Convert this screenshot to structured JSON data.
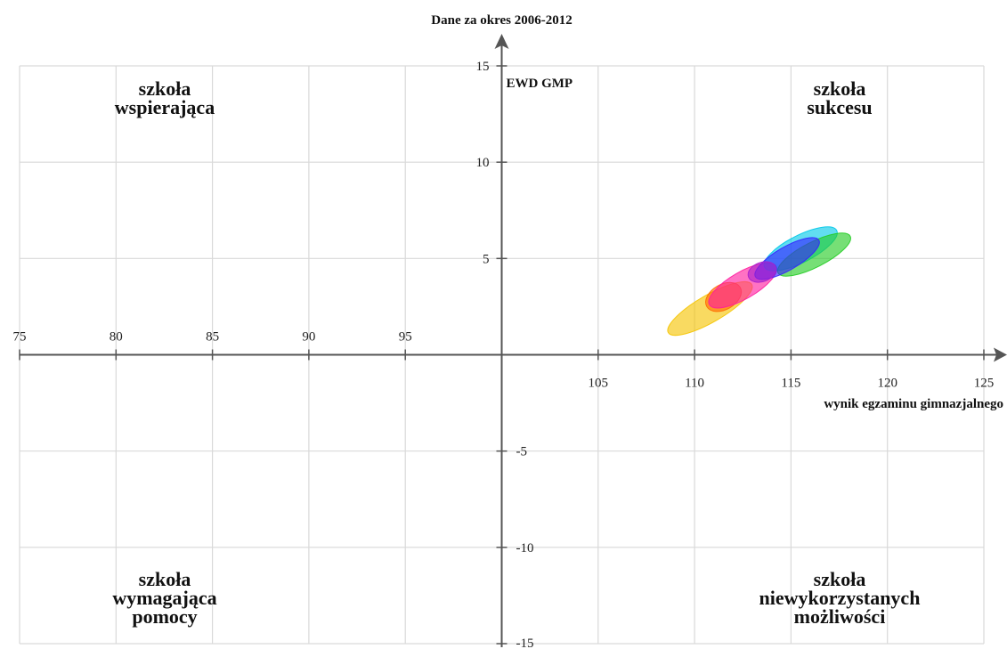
{
  "chart_data": {
    "type": "scatter",
    "title": "Dane za okres 2006-2012",
    "xlabel": "wynik egzaminu gimnazjalnego",
    "ylabel": "EWD GMP",
    "xlim": [
      75,
      125
    ],
    "ylim": [
      -15,
      15
    ],
    "x_ticks": [
      75,
      80,
      85,
      90,
      95,
      105,
      110,
      115,
      120,
      125
    ],
    "y_ticks": [
      15,
      10,
      5,
      -5,
      -10,
      -15
    ],
    "grid": true,
    "quadrant_labels": {
      "top_left": [
        "szkoła",
        "wspierająca"
      ],
      "top_right": [
        "szkoła",
        "sukcesu"
      ],
      "bottom_left": [
        "szkoła",
        "wymagająca",
        "pomocy"
      ],
      "bottom_right": [
        "szkoła",
        "niewykorzystanych",
        "możliwości"
      ]
    },
    "ellipses": [
      {
        "color": "#f5c400",
        "cx": 110.8,
        "cy": 2.4,
        "rx": 2.5,
        "ry": 0.7,
        "angle_deg": 30
      },
      {
        "color": "#ff6a00",
        "cx": 111.5,
        "cy": 3.0,
        "rx": 1.0,
        "ry": 0.65,
        "angle_deg": 30
      },
      {
        "color": "#ff1c9e",
        "cx": 112.5,
        "cy": 3.6,
        "rx": 2.0,
        "ry": 0.7,
        "angle_deg": 30
      },
      {
        "color": "#00c8e8",
        "cx": 115.5,
        "cy": 5.5,
        "rx": 2.1,
        "ry": 0.7,
        "angle_deg": 27
      },
      {
        "color": "#22cc22",
        "cx": 116.2,
        "cy": 5.2,
        "rx": 2.1,
        "ry": 0.65,
        "angle_deg": 27
      },
      {
        "color": "#3322ff",
        "cx": 114.8,
        "cy": 5.0,
        "rx": 1.9,
        "ry": 0.6,
        "angle_deg": 30
      },
      {
        "color": "#a81fcc",
        "cx": 113.5,
        "cy": 4.3,
        "rx": 0.75,
        "ry": 0.5,
        "angle_deg": 20
      }
    ]
  }
}
